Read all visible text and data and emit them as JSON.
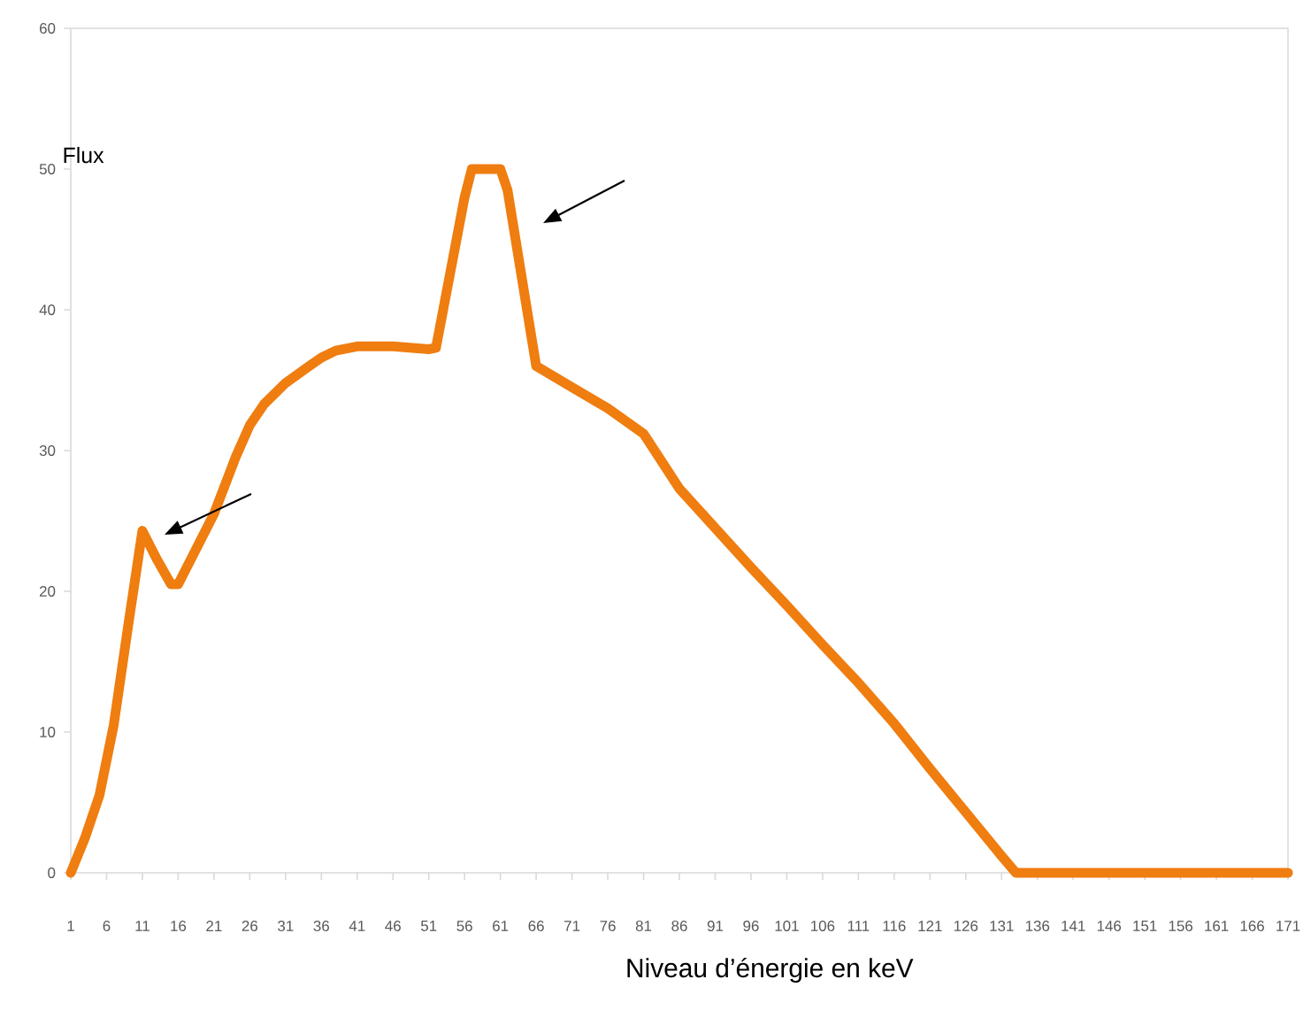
{
  "chart_data": {
    "type": "line",
    "xlabel": "Niveau d’énergie en keV",
    "ylabel": "Flux",
    "x": [
      1,
      3,
      5,
      7,
      9,
      11,
      13,
      15,
      16,
      18,
      21,
      24,
      26,
      28,
      31,
      34,
      36,
      38,
      41,
      46,
      51,
      52,
      56,
      57,
      61,
      62,
      66,
      71,
      76,
      81,
      86,
      91,
      96,
      101,
      106,
      111,
      116,
      121,
      126,
      131,
      133,
      171
    ],
    "values": [
      0,
      2.5,
      5.5,
      10.5,
      17.5,
      24.3,
      22.3,
      20.5,
      20.5,
      22.5,
      25.5,
      29.5,
      31.8,
      33.3,
      34.8,
      35.9,
      36.6,
      37.1,
      37.4,
      37.4,
      37.2,
      37.3,
      48,
      50,
      50,
      48.5,
      36,
      34.5,
      33,
      31.2,
      27.3,
      24.5,
      21.7,
      19,
      16.2,
      13.5,
      10.6,
      7.4,
      4.3,
      1.2,
      0,
      0
    ],
    "color": "#ef7d10",
    "marker": "none",
    "line_style": "solid",
    "xlim": [
      1,
      171
    ],
    "ylim": [
      0,
      60
    ],
    "xticks": [
      1,
      6,
      11,
      16,
      21,
      26,
      31,
      36,
      41,
      46,
      51,
      56,
      61,
      66,
      71,
      76,
      81,
      86,
      91,
      96,
      101,
      106,
      111,
      116,
      121,
      126,
      131,
      136,
      141,
      146,
      151,
      156,
      161,
      166,
      171
    ],
    "yticks": [
      0,
      10,
      20,
      30,
      40,
      50,
      60
    ]
  }
}
